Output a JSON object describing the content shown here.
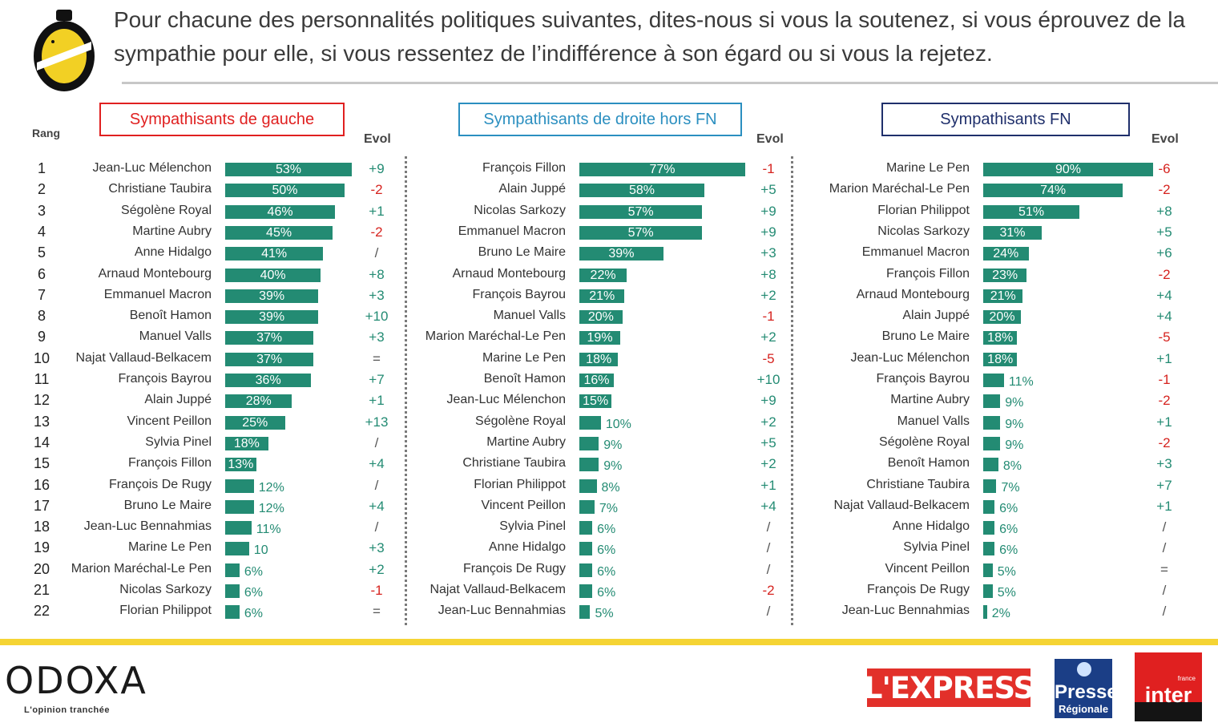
{
  "question": "Pour chacune des personnalités politiques suivantes, dites-nous si vous la soutenez, si vous éprouvez de la sympathie pour elle, si vous ressentez de l’indifférence à son égard ou si vous la rejetez.",
  "rank_header": "Rang",
  "evol_header": "Evol",
  "colors": {
    "bar": "#238b73",
    "evol_red": "#d6231f",
    "evol_green": "#238b73",
    "yellow": "#f5d434"
  },
  "ranks": [
    "1",
    "2",
    "3",
    "4",
    "5",
    "6",
    "7",
    "8",
    "9",
    "10",
    "11",
    "12",
    "13",
    "14",
    "15",
    "16",
    "17",
    "18",
    "19",
    "20",
    "21",
    "22"
  ],
  "chart_data": [
    {
      "type": "bar",
      "title": "Sympathisants de gauche",
      "title_color": "#e02020",
      "categories": [
        "Jean-Luc Mélenchon",
        "Christiane Taubira",
        "Ségolène Royal",
        "Martine Aubry",
        "Anne Hidalgo",
        "Arnaud Montebourg",
        "Emmanuel Macron",
        "Benoît Hamon",
        "Manuel Valls",
        "Najat Vallaud-Belkacem",
        "François Bayrou",
        "Alain Juppé",
        "Vincent Peillon",
        "Sylvia Pinel",
        "François Fillon",
        "François De Rugy",
        "Bruno Le Maire",
        "Jean-Luc Bennahmias",
        "Marine Le Pen",
        "Marion Maréchal-Le Pen",
        "Nicolas Sarkozy",
        "Florian Philippot"
      ],
      "values": [
        53,
        50,
        46,
        45,
        41,
        40,
        39,
        39,
        37,
        37,
        36,
        28,
        25,
        18,
        13,
        12,
        12,
        11,
        10,
        6,
        6,
        6
      ],
      "labels": [
        "53%",
        "50%",
        "46%",
        "45%",
        "41%",
        "40%",
        "39%",
        "39%",
        "37%",
        "37%",
        "36%",
        "28%",
        "25%",
        "18%",
        "13%",
        "12%",
        "12%",
        "11%",
        "10",
        "6%",
        "6%",
        "6%"
      ],
      "evol": [
        "+9",
        "-2",
        "+1",
        "-2",
        "/",
        "+8",
        "+3",
        "+10",
        "+3",
        "=",
        "+7",
        "+1",
        "+13",
        "/",
        "+4",
        "/",
        "+4",
        "/",
        "+3",
        "+2",
        "-1",
        "="
      ]
    },
    {
      "type": "bar",
      "title": "Sympathisants de droite hors FN",
      "title_color": "#2b8fc0",
      "categories": [
        "François Fillon",
        "Alain Juppé",
        "Nicolas Sarkozy",
        "Emmanuel Macron",
        "Bruno Le Maire",
        "Arnaud Montebourg",
        "François Bayrou",
        "Manuel Valls",
        "Marion Maréchal-Le Pen",
        "Marine Le Pen",
        "Benoît Hamon",
        "Jean-Luc Mélenchon",
        "Ségolène Royal",
        "Martine Aubry",
        "Christiane Taubira",
        "Florian Philippot",
        "Vincent Peillon",
        "Sylvia Pinel",
        "Anne Hidalgo",
        "François De Rugy",
        "Najat Vallaud-Belkacem",
        "Jean-Luc Bennahmias"
      ],
      "values": [
        77,
        58,
        57,
        57,
        39,
        22,
        21,
        20,
        19,
        18,
        16,
        15,
        10,
        9,
        9,
        8,
        7,
        6,
        6,
        6,
        6,
        5
      ],
      "labels": [
        "77%",
        "58%",
        "57%",
        "57%",
        "39%",
        "22%",
        "21%",
        "20%",
        "19%",
        "18%",
        "16%",
        "15%",
        "10%",
        "9%",
        "9%",
        "8%",
        "7%",
        "6%",
        "6%",
        "6%",
        "6%",
        "5%"
      ],
      "evol": [
        "-1",
        "+5",
        "+9",
        "+9",
        "+3",
        "+8",
        "+2",
        "-1",
        "+2",
        "-5",
        "+10",
        "+9",
        "+2",
        "+5",
        "+2",
        "+1",
        "+4",
        "/",
        "/",
        "/",
        "-2",
        "/"
      ]
    },
    {
      "type": "bar",
      "title": "Sympathisants FN",
      "title_color": "#1f2f6b",
      "categories": [
        "Marine Le Pen",
        "Marion Maréchal-Le Pen",
        "Florian Philippot",
        "Nicolas Sarkozy",
        "Emmanuel Macron",
        "François Fillon",
        "Arnaud Montebourg",
        "Alain Juppé",
        "Bruno Le Maire",
        "Jean-Luc Mélenchon",
        "François Bayrou",
        "Martine Aubry",
        "Manuel Valls",
        "Ségolène Royal",
        "Benoît Hamon",
        "Christiane Taubira",
        "Najat Vallaud-Belkacem",
        "Anne Hidalgo",
        "Sylvia Pinel",
        "Vincent Peillon",
        "François De Rugy",
        "Jean-Luc Bennahmias"
      ],
      "values": [
        90,
        74,
        51,
        31,
        24,
        23,
        21,
        20,
        18,
        18,
        11,
        9,
        9,
        9,
        8,
        7,
        6,
        6,
        6,
        5,
        5,
        2
      ],
      "labels": [
        "90%",
        "74%",
        "51%",
        "31%",
        "24%",
        "23%",
        "21%",
        "20%",
        "18%",
        "18%",
        "11%",
        "9%",
        "9%",
        "9%",
        "8%",
        "7%",
        "6%",
        "6%",
        "6%",
        "5%",
        "5%",
        "2%"
      ],
      "evol": [
        "-6",
        "-2",
        "+8",
        "+5",
        "+6",
        "-2",
        "+4",
        "+4",
        "-5",
        "+1",
        "-1",
        "-2",
        "+1",
        "-2",
        "+3",
        "+7",
        "+1",
        "/",
        "/",
        "=",
        "/",
        "/"
      ]
    }
  ],
  "footer": {
    "brand": "ODOXA",
    "tagline": "L'opinion tranchée",
    "partner1": "L'EXPRESS",
    "partner2a": "Presse",
    "partner2b": "Régionale",
    "partner3": "inter",
    "partner3_small": "france"
  }
}
